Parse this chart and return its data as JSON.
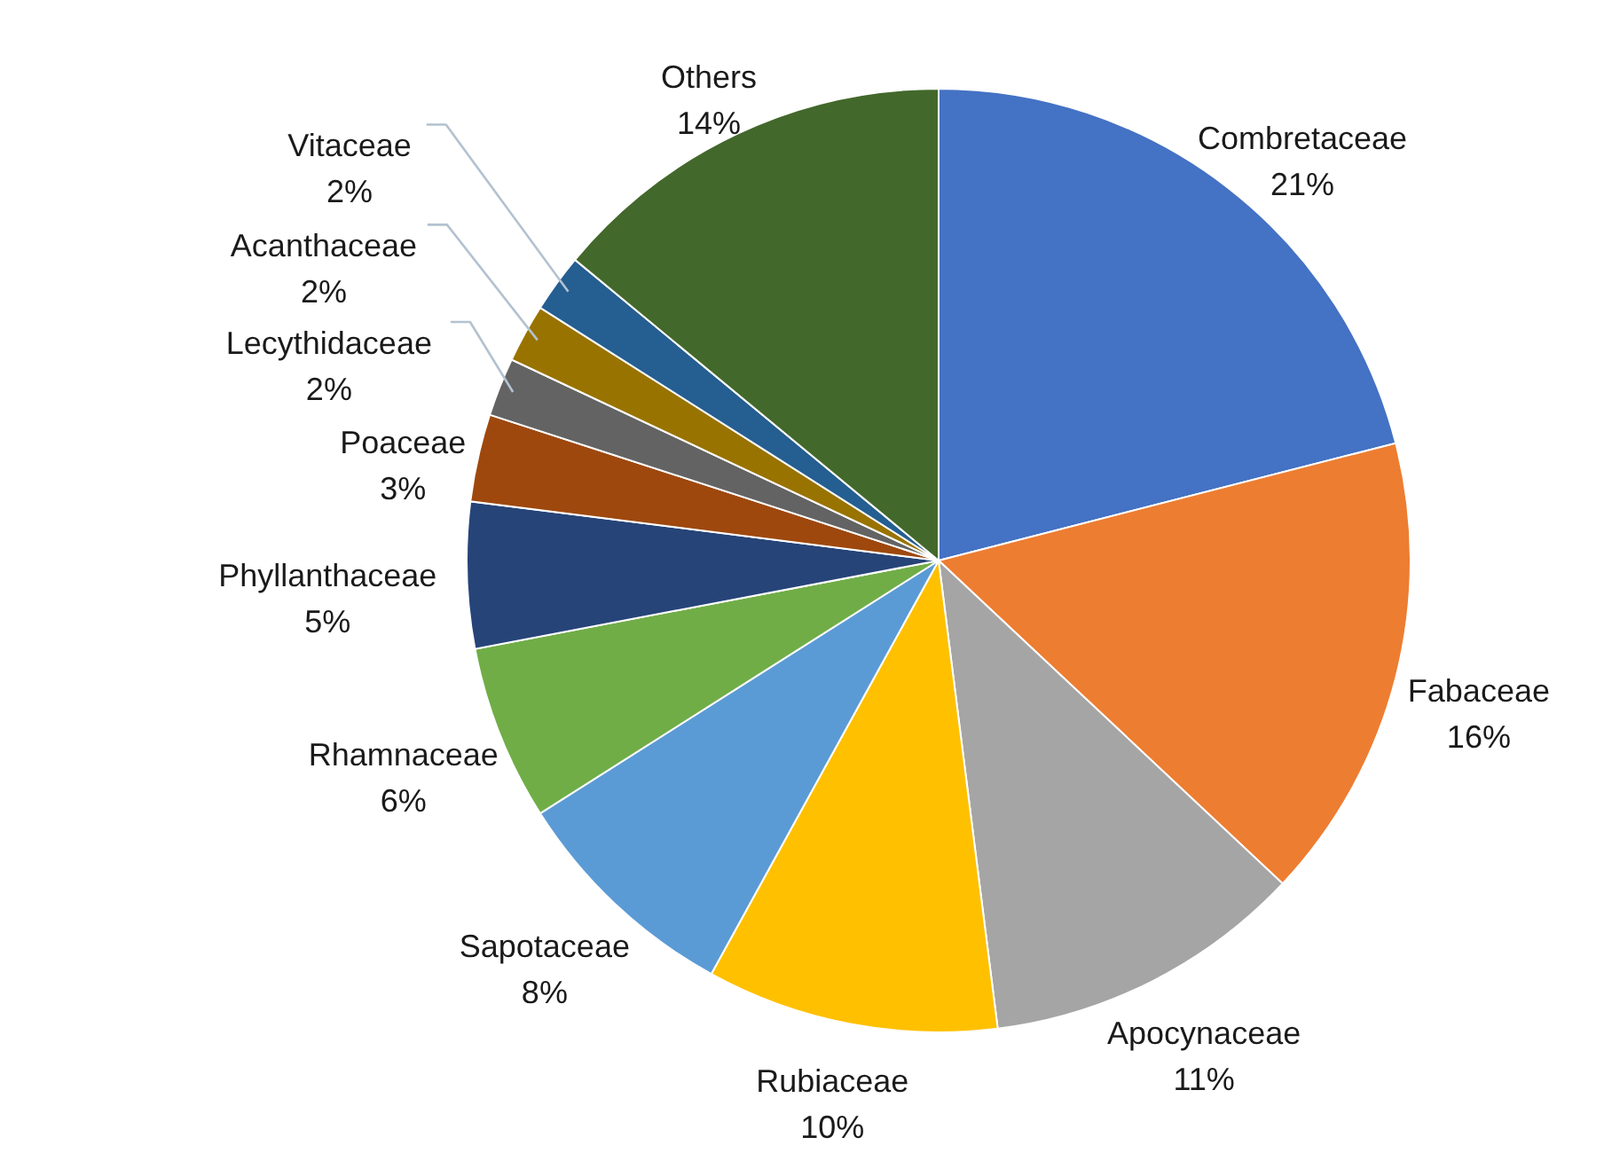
{
  "chart_data": {
    "type": "pie",
    "categories": [
      "Combretaceae",
      "Fabaceae",
      "Apocynaceae",
      "Rubiaceae",
      "Sapotaceae",
      "Rhamnaceae",
      "Phyllanthaceae",
      "Poaceae",
      "Lecythidaceae",
      "Acanthaceae",
      "Vitaceae",
      "Others"
    ],
    "values": [
      21,
      16,
      11,
      10,
      8,
      6,
      5,
      3,
      2,
      2,
      2,
      14
    ],
    "colors": [
      "#4472c4",
      "#ed7d31",
      "#a5a5a5",
      "#ffc000",
      "#5b9bd5",
      "#70ad47",
      "#264478",
      "#9e480e",
      "#636363",
      "#997300",
      "#255e91",
      "#43682b"
    ],
    "value_labels": [
      "21%",
      "16%",
      "11%",
      "10%",
      "8%",
      "6%",
      "5%",
      "3%",
      "2%",
      "2%",
      "2%",
      "14%"
    ]
  }
}
